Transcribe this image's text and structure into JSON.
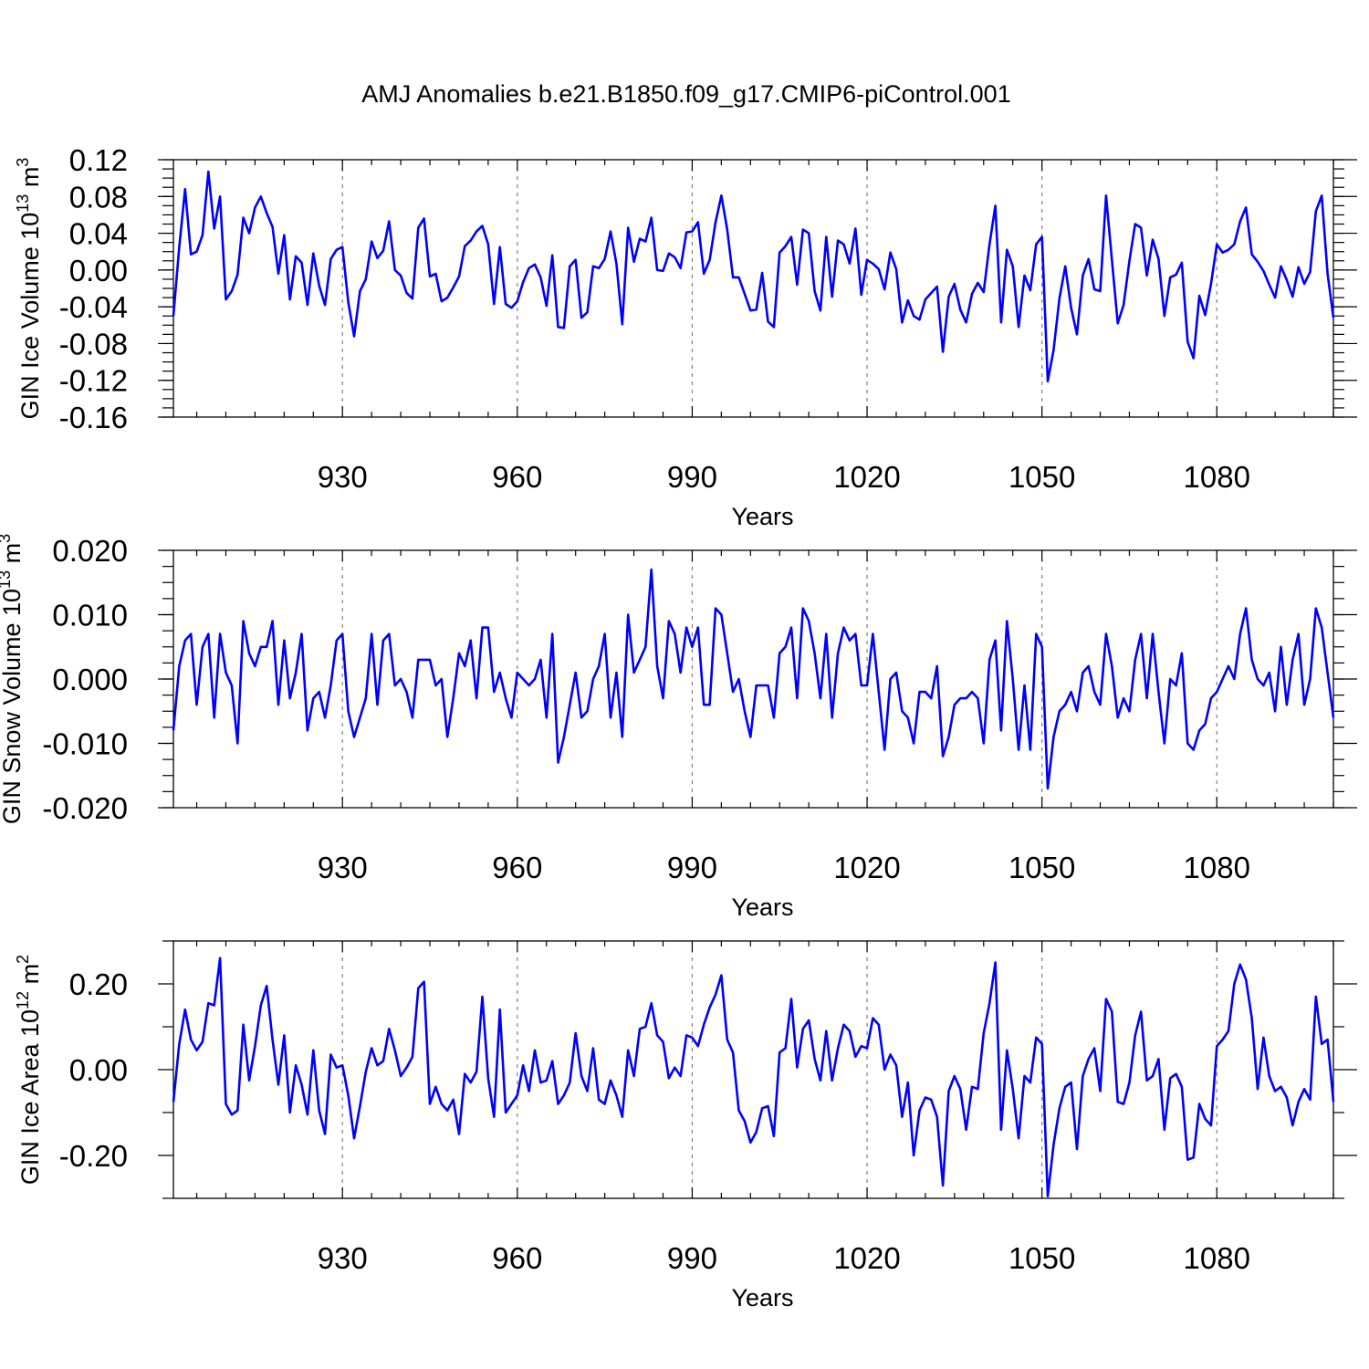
{
  "chart_data": {
    "title": "AMJ Anomalies b.e21.B1850.f09_g17.CMIP6-piControl.001",
    "type": "line",
    "x": {
      "start": 901,
      "end": 1100,
      "step": 1,
      "label": "Years",
      "tick_labels": [
        "930",
        "960",
        "990",
        "1020",
        "1050",
        "1080"
      ],
      "tick_values": [
        930,
        960,
        990,
        1020,
        1050,
        1080
      ]
    },
    "line_color": "#0000ff",
    "panels": [
      {
        "name": "ice-volume",
        "ylabel_base": "GIN Ice Volume 10",
        "ylabel_exp": "13",
        "ylabel_unit": " m",
        "ylabel_unit_exp": "3",
        "ylim": [
          -0.16,
          0.12
        ],
        "yticks": [
          0.12,
          0.08,
          0.04,
          0.0,
          -0.04,
          -0.08,
          -0.12,
          -0.16
        ],
        "ytick_labels": [
          "0.12",
          "0.08",
          "0.04",
          "0.00",
          "-0.04",
          "-0.08",
          "-0.12",
          "-0.16"
        ],
        "values": [
          -0.05,
          0.025,
          0.088,
          0.017,
          0.02,
          0.038,
          0.107,
          0.045,
          0.08,
          -0.032,
          -0.023,
          -0.005,
          0.057,
          0.04,
          0.068,
          0.08,
          0.062,
          0.047,
          -0.004,
          0.038,
          -0.032,
          0.015,
          0.008,
          -0.038,
          0.018,
          -0.017,
          -0.038,
          0.012,
          0.022,
          0.025,
          -0.035,
          -0.072,
          -0.023,
          -0.01,
          0.031,
          0.013,
          0.021,
          0.053,
          0.0,
          -0.006,
          -0.025,
          -0.031,
          0.046,
          0.056,
          -0.007,
          -0.004,
          -0.034,
          -0.03,
          -0.019,
          -0.007,
          0.026,
          0.032,
          0.042,
          0.048,
          0.028,
          -0.037,
          0.025,
          -0.037,
          -0.041,
          -0.034,
          -0.013,
          0.002,
          0.006,
          -0.008,
          -0.039,
          0.016,
          -0.062,
          -0.063,
          0.004,
          0.011,
          -0.052,
          -0.046,
          0.004,
          0.002,
          0.012,
          0.042,
          0.007,
          -0.059,
          0.046,
          0.009,
          0.034,
          0.031,
          0.057,
          0.0,
          -0.001,
          0.018,
          0.014,
          0.002,
          0.041,
          0.042,
          0.052,
          -0.004,
          0.011,
          0.052,
          0.081,
          0.044,
          -0.008,
          -0.008,
          -0.026,
          -0.044,
          -0.043,
          -0.003,
          -0.056,
          -0.062,
          0.019,
          0.026,
          0.036,
          -0.016,
          0.044,
          0.04,
          -0.023,
          -0.044,
          0.036,
          -0.029,
          0.032,
          0.028,
          0.007,
          0.045,
          -0.027,
          0.011,
          0.007,
          0.001,
          -0.021,
          0.019,
          0.001,
          -0.057,
          -0.033,
          -0.05,
          -0.054,
          -0.032,
          -0.025,
          -0.018,
          -0.089,
          -0.029,
          -0.015,
          -0.043,
          -0.057,
          -0.026,
          -0.014,
          -0.024,
          0.028,
          0.07,
          -0.057,
          0.022,
          0.004,
          -0.062,
          -0.006,
          -0.022,
          0.028,
          0.036,
          -0.121,
          -0.087,
          -0.031,
          0.004,
          -0.041,
          -0.07,
          -0.006,
          0.012,
          -0.021,
          -0.023,
          0.081,
          0.011,
          -0.058,
          -0.038,
          0.01,
          0.05,
          0.046,
          -0.006,
          0.033,
          0.012,
          -0.05,
          -0.008,
          -0.005,
          0.008,
          -0.078,
          -0.096,
          -0.028,
          -0.049,
          -0.015,
          0.028,
          0.019,
          0.022,
          0.028,
          0.053,
          0.068,
          0.017,
          0.009,
          -0.001,
          -0.016,
          -0.03,
          0.004,
          -0.011,
          -0.029,
          0.003,
          -0.015,
          -0.002,
          0.064,
          0.081,
          -0.004,
          -0.052
        ]
      },
      {
        "name": "snow-volume",
        "ylabel_base": "GIN Snow Volume 10",
        "ylabel_exp": "13",
        "ylabel_unit": " m",
        "ylabel_unit_exp": "3",
        "ylim": [
          -0.02,
          0.02
        ],
        "yticks": [
          0.02,
          0.01,
          0.0,
          -0.01,
          -0.02
        ],
        "ytick_labels": [
          "0.020",
          "0.010",
          "0.000",
          "-0.010",
          "-0.020"
        ],
        "values": [
          -0.008,
          0.002,
          0.006,
          0.007,
          -0.004,
          0.005,
          0.007,
          -0.006,
          0.007,
          0.001,
          -0.001,
          -0.01,
          0.009,
          0.004,
          0.002,
          0.005,
          0.005,
          0.009,
          -0.004,
          0.006,
          -0.003,
          0.001,
          0.007,
          -0.008,
          -0.003,
          -0.002,
          -0.006,
          -0.001,
          0.006,
          0.007,
          -0.005,
          -0.009,
          -0.006,
          -0.003,
          0.007,
          -0.004,
          0.006,
          0.007,
          -0.001,
          0.0,
          -0.002,
          -0.006,
          0.003,
          0.003,
          0.003,
          -0.001,
          0.0,
          -0.009,
          -0.003,
          0.004,
          0.002,
          0.006,
          -0.003,
          0.008,
          0.008,
          -0.002,
          0.001,
          -0.003,
          -0.006,
          0.001,
          0.0,
          -0.001,
          0.0,
          0.003,
          -0.006,
          0.007,
          -0.013,
          -0.009,
          -0.004,
          0.001,
          -0.006,
          -0.005,
          0.0,
          0.002,
          0.007,
          -0.006,
          0.001,
          -0.009,
          0.01,
          0.001,
          0.003,
          0.005,
          0.017,
          0.002,
          -0.003,
          0.009,
          0.007,
          0.001,
          0.008,
          0.005,
          0.008,
          -0.004,
          -0.004,
          0.011,
          0.01,
          0.004,
          -0.002,
          0.0,
          -0.005,
          -0.009,
          -0.001,
          -0.001,
          -0.001,
          -0.006,
          0.004,
          0.005,
          0.008,
          -0.003,
          0.011,
          0.009,
          0.004,
          -0.003,
          0.007,
          -0.006,
          0.004,
          0.008,
          0.006,
          0.007,
          -0.001,
          -0.001,
          0.007,
          -0.002,
          -0.011,
          0.0,
          0.001,
          -0.005,
          -0.006,
          -0.01,
          -0.002,
          -0.002,
          -0.003,
          0.002,
          -0.012,
          -0.009,
          -0.004,
          -0.003,
          -0.003,
          -0.002,
          -0.003,
          -0.01,
          0.003,
          0.006,
          -0.008,
          0.009,
          0.0,
          -0.011,
          -0.001,
          -0.011,
          0.007,
          0.005,
          -0.017,
          -0.009,
          -0.005,
          -0.004,
          -0.002,
          -0.005,
          0.001,
          0.002,
          -0.002,
          -0.004,
          0.007,
          0.002,
          -0.006,
          -0.003,
          -0.005,
          0.003,
          0.007,
          -0.003,
          0.007,
          -0.002,
          -0.01,
          0.0,
          -0.001,
          0.004,
          -0.01,
          -0.011,
          -0.008,
          -0.007,
          -0.003,
          -0.002,
          0.0,
          0.002,
          0.0,
          0.007,
          0.011,
          0.003,
          0.0,
          -0.001,
          0.001,
          -0.005,
          0.005,
          -0.004,
          0.003,
          0.007,
          -0.004,
          0.0,
          0.011,
          0.008,
          0.001,
          -0.006
        ]
      },
      {
        "name": "ice-area",
        "ylabel_base": "GIN Ice Area 10",
        "ylabel_exp": "12",
        "ylabel_unit": " m",
        "ylabel_unit_exp": "2",
        "ylim": [
          -0.3,
          0.3
        ],
        "yticks": [
          0.2,
          0.0,
          -0.2
        ],
        "ytick_labels": [
          "0.20",
          "0.00",
          "-0.20"
        ],
        "minor_ticks": [
          0.3,
          0.1,
          -0.1,
          -0.3
        ],
        "values": [
          -0.075,
          0.06,
          0.14,
          0.07,
          0.045,
          0.065,
          0.155,
          0.15,
          0.26,
          -0.08,
          -0.105,
          -0.095,
          0.105,
          -0.025,
          0.055,
          0.15,
          0.195,
          0.07,
          -0.035,
          0.08,
          -0.1,
          0.01,
          -0.035,
          -0.105,
          0.045,
          -0.095,
          -0.15,
          0.035,
          0.005,
          0.01,
          -0.06,
          -0.16,
          -0.085,
          -0.005,
          0.05,
          0.01,
          0.02,
          0.095,
          0.045,
          -0.015,
          0.005,
          0.03,
          0.19,
          0.205,
          -0.08,
          -0.04,
          -0.08,
          -0.095,
          -0.07,
          -0.15,
          -0.01,
          -0.03,
          -0.005,
          0.17,
          -0.02,
          -0.11,
          0.14,
          -0.1,
          -0.08,
          -0.06,
          0.01,
          -0.05,
          0.045,
          -0.03,
          -0.025,
          0.02,
          -0.08,
          -0.06,
          -0.03,
          0.085,
          -0.015,
          -0.05,
          0.05,
          -0.07,
          -0.08,
          -0.025,
          -0.06,
          -0.11,
          0.045,
          -0.015,
          0.095,
          0.1,
          0.155,
          0.08,
          0.065,
          -0.02,
          0.005,
          -0.015,
          0.08,
          0.075,
          0.055,
          0.105,
          0.145,
          0.175,
          0.22,
          0.07,
          0.04,
          -0.095,
          -0.12,
          -0.17,
          -0.145,
          -0.09,
          -0.085,
          -0.155,
          0.04,
          0.05,
          0.165,
          0.005,
          0.095,
          0.115,
          0.025,
          -0.025,
          0.09,
          -0.025,
          0.05,
          0.105,
          0.09,
          0.03,
          0.055,
          0.05,
          0.12,
          0.105,
          0.0,
          0.035,
          0.01,
          -0.11,
          -0.03,
          -0.2,
          -0.095,
          -0.065,
          -0.07,
          -0.11,
          -0.27,
          -0.05,
          -0.015,
          -0.045,
          -0.14,
          -0.04,
          -0.045,
          0.085,
          0.155,
          0.25,
          -0.14,
          0.045,
          -0.045,
          -0.16,
          -0.015,
          -0.03,
          0.075,
          0.06,
          -0.295,
          -0.175,
          -0.09,
          -0.04,
          -0.03,
          -0.185,
          -0.015,
          0.025,
          0.05,
          -0.05,
          0.165,
          0.135,
          -0.075,
          -0.08,
          -0.03,
          0.08,
          0.135,
          -0.025,
          -0.015,
          0.025,
          -0.14,
          -0.02,
          -0.01,
          -0.04,
          -0.21,
          -0.205,
          -0.08,
          -0.115,
          -0.13,
          0.055,
          0.07,
          0.09,
          0.2,
          0.245,
          0.21,
          0.12,
          -0.045,
          0.075,
          -0.015,
          -0.05,
          -0.04,
          -0.065,
          -0.13,
          -0.075,
          -0.045,
          -0.07,
          0.17,
          0.06,
          0.07,
          -0.075
        ]
      }
    ]
  }
}
